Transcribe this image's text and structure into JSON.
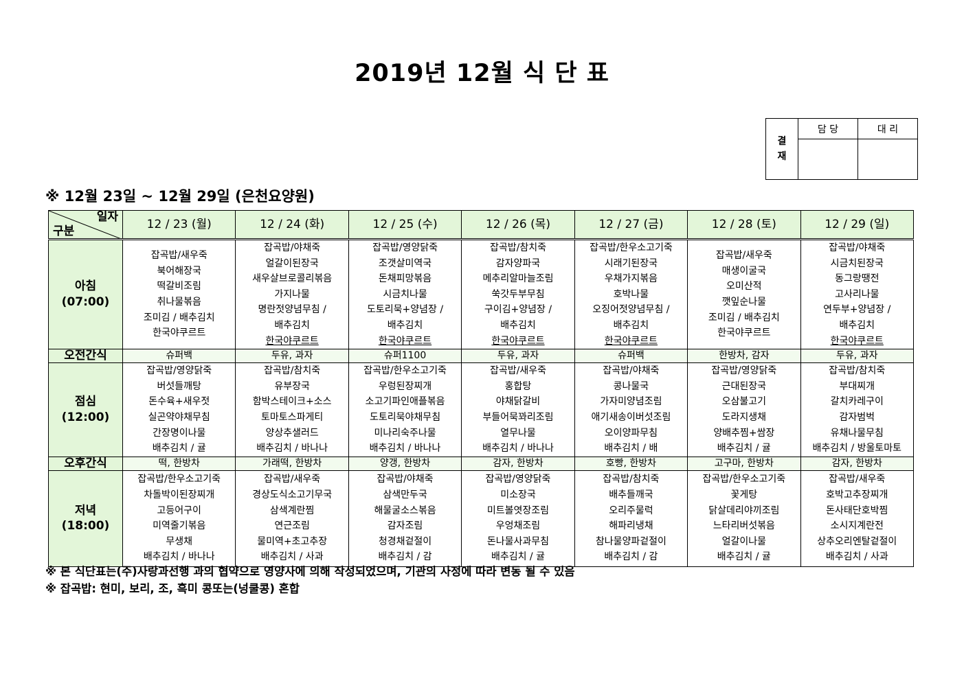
{
  "title": "2019년 12월 식 단 표",
  "approval": {
    "label": "결\n재",
    "label_chars": [
      "결",
      "재"
    ],
    "col1": "담 당",
    "col2": "대 리"
  },
  "subtitle": "※ 12월 23일 ~ 12월 29일 (은천요양원)",
  "corner": {
    "top": "일자",
    "bottom": "구분"
  },
  "row_labels": {
    "breakfast": "아침",
    "breakfast_time": "(07:00)",
    "snack_am": "오전간식",
    "lunch": "점심",
    "lunch_time": "(12:00)",
    "snack_pm": "오후간식",
    "dinner": "저녁",
    "dinner_time": "(18:00)"
  },
  "days": [
    {
      "date": "12 / 23 (월)",
      "breakfast": [
        "잡곡밥/새우죽",
        "북어해장국",
        "떡갈비조림",
        "취나물볶음",
        "조미김 / 배추김치",
        "한국야쿠르트"
      ],
      "snack_am": "슈퍼백",
      "lunch": [
        "잡곡밥/영양닭죽",
        "버섯들깨탕",
        "돈수육+새우젓",
        "실곤약야채무침",
        "간장명이나물",
        "배추김치 / 귤"
      ],
      "snack_pm": "떡, 한방차",
      "dinner": [
        "잡곡밥/한우소고기죽",
        "차돌박이된장찌개",
        "고등어구이",
        "미역줄기볶음",
        "무생채",
        "배추김치 / 바나나"
      ]
    },
    {
      "date": "12 / 24 (화)",
      "breakfast": [
        "잡곡밥/야채죽",
        "얼갈이된장국",
        "새우살브로콜리볶음",
        "가지나물",
        "명란젓양념무침 /",
        "배추김치",
        "한국야쿠르트"
      ],
      "snack_am": "두유, 과자",
      "lunch": [
        "잡곡밥/참치죽",
        "유부장국",
        "함박스테이크+소스",
        "토마토스파게티",
        "양상추샐러드",
        "배추김치 / 바나나"
      ],
      "snack_pm": "가래떡, 한방차",
      "dinner": [
        "잡곡밥/새우죽",
        "경상도식소고기무국",
        "삼색계란찜",
        "연근조림",
        "물미역+초고추장",
        "배추김치 / 사과"
      ]
    },
    {
      "date": "12 / 25 (수)",
      "breakfast": [
        "잡곡밥/영양닭죽",
        "조갯살미역국",
        "돈채피망볶음",
        "시금치나물",
        "도토리묵+양념장 /",
        "배추김치",
        "한국야쿠르트"
      ],
      "snack_am": "슈퍼1100",
      "lunch": [
        "잡곡밥/한우소고기죽",
        "우렁된장찌개",
        "소고기파인애플볶음",
        "도토리묵야채무침",
        "미나리숙주나물",
        "배추김치 / 바나나"
      ],
      "snack_pm": "양갱, 한방차",
      "dinner": [
        "잡곡밥/야채죽",
        "삼색만두국",
        "해물굴소스볶음",
        "감자조림",
        "청경채겉절이",
        "배추김치 / 감"
      ]
    },
    {
      "date": "12 / 26 (목)",
      "breakfast": [
        "잡곡밥/참치죽",
        "감자양파국",
        "메추리알마늘조림",
        "쑥갓두부무침",
        "구이김+양념장 /",
        "배추김치",
        "한국야쿠르트"
      ],
      "snack_am": "두유, 과자",
      "lunch": [
        "잡곡밥/새우죽",
        "홍합탕",
        "야채닭갈비",
        "부들어묵꽈리조림",
        "열무나물",
        "배추김치 / 바나나"
      ],
      "snack_pm": "감자, 한방차",
      "dinner": [
        "잡곡밥/영양닭죽",
        "미소장국",
        "미트볼엿장조림",
        "우엉채조림",
        "돈나물사과무침",
        "배추김치 / 귤"
      ]
    },
    {
      "date": "12 / 27 (금)",
      "breakfast": [
        "잡곡밥/한우소고기죽",
        "시래기된장국",
        "우채가지볶음",
        "호박나물",
        "오징어젓양념무침 /",
        "배추김치",
        "한국야쿠르트"
      ],
      "snack_am": "슈퍼백",
      "lunch": [
        "잡곡밥/야채죽",
        "콩나물국",
        "가자미양념조림",
        "애기새송이버섯조림",
        "오이양파무침",
        "배추김치 / 배"
      ],
      "snack_pm": "호빵, 한방차",
      "dinner": [
        "잡곡밥/참치죽",
        "배추들깨국",
        "오리주물럭",
        "해파리냉채",
        "참나물양파겉절이",
        "배추김치 / 감"
      ]
    },
    {
      "date": "12 / 28 (토)",
      "breakfast": [
        "잡곡밥/새우죽",
        "매생이굴국",
        "오미산적",
        "깻잎순나물",
        "조미김 / 배추김치",
        "한국야쿠르트"
      ],
      "snack_am": "한방차, 감자",
      "lunch": [
        "잡곡밥/영양닭죽",
        "근대된장국",
        "오삼불고기",
        "도라지생채",
        "양배추찜+쌈장",
        "배추김치 / 귤"
      ],
      "snack_pm": "고구마, 한방차",
      "dinner": [
        "잡곡밥/한우소고기죽",
        "꽃게탕",
        "닭살데리야끼조림",
        "느타리버섯볶음",
        "얼갈이나물",
        "배추김치 / 귤"
      ]
    },
    {
      "date": "12 / 29 (일)",
      "breakfast": [
        "잡곡밥/야채죽",
        "시금치된장국",
        "동그랑땡전",
        "고사리나물",
        "연두부+양념장 /",
        "배추김치",
        "한국야쿠르트"
      ],
      "snack_am": "두유, 과자",
      "lunch": [
        "잡곡밥/참치죽",
        "부대찌개",
        "갈치카레구이",
        "감자범벅",
        "유채나물무침",
        "배추김치 / 방울토마토"
      ],
      "snack_pm": "감자, 한방차",
      "dinner": [
        "잡곡밥/새우죽",
        "호박고추장찌개",
        "돈사태단호박찜",
        "소시지계란전",
        "상추오리엔탈겉절이",
        "배추김치 / 사과"
      ]
    }
  ],
  "notes": [
    "※ 본 식단표는(주)사랑과선행 과의 협약으로 영양사에 의해 작성되었으며, 기관의 사정에 따라 변동 될 수 있음",
    "※ 잡곡밥: 현미, 보리, 조, 흑미 콩또는(넝쿨콩) 혼합"
  ]
}
